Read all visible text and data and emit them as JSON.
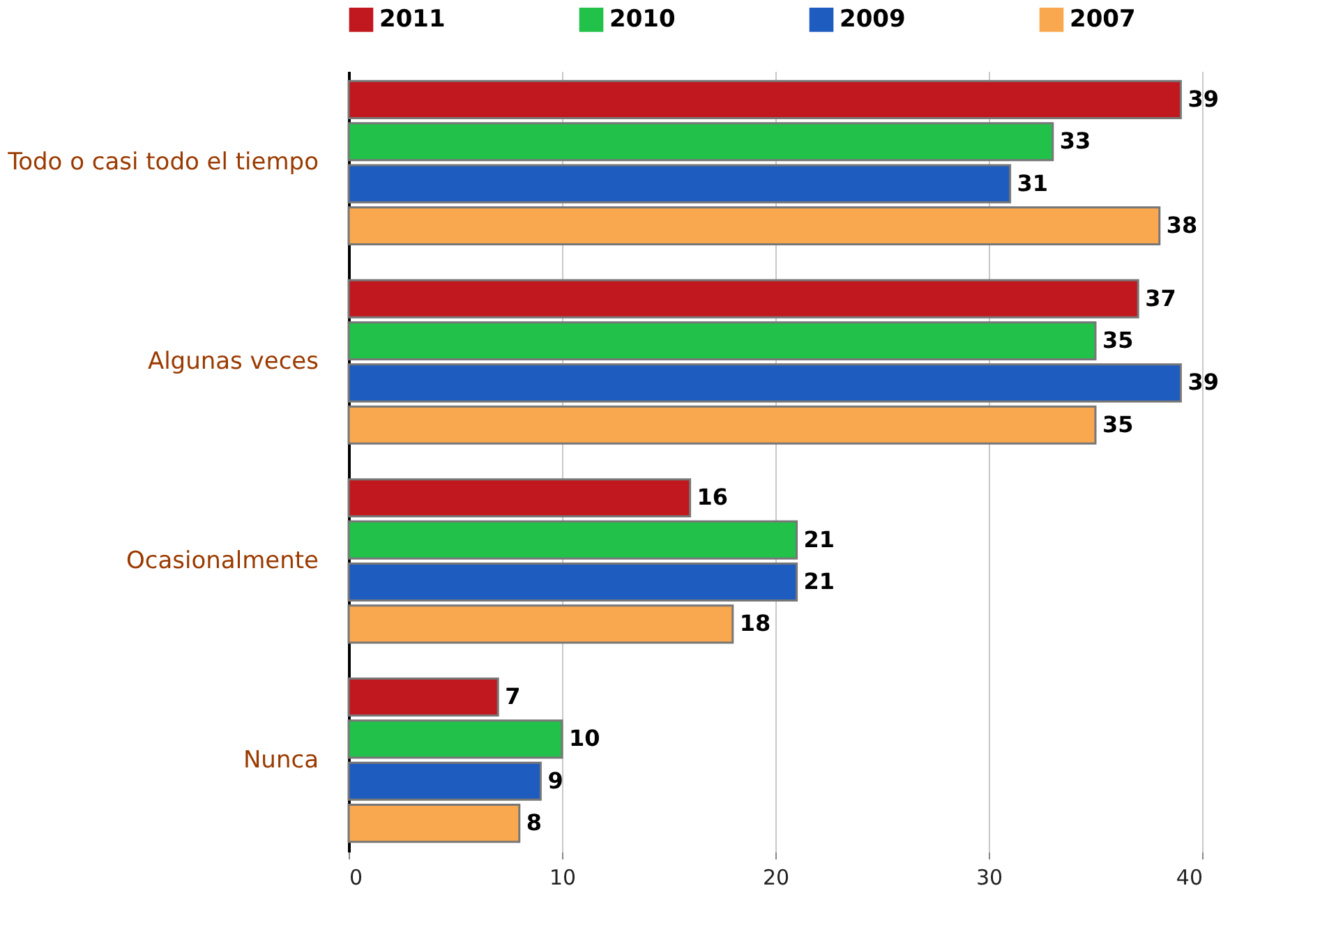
{
  "chart_data": {
    "type": "bar",
    "orientation": "horizontal",
    "categories": [
      "Todo o casi todo el tiempo",
      "Algunas veces",
      "Ocasionalmente",
      "Nunca"
    ],
    "series": [
      {
        "name": "2011",
        "color": "#c0181e",
        "values": [
          39,
          37,
          16,
          7
        ]
      },
      {
        "name": "2010",
        "color": "#22c24a",
        "values": [
          33,
          35,
          21,
          10
        ]
      },
      {
        "name": "2009",
        "color": "#1f5cbf",
        "values": [
          31,
          39,
          21,
          9
        ]
      },
      {
        "name": "2007",
        "color": "#f9a84f",
        "values": [
          38,
          35,
          18,
          8
        ]
      }
    ],
    "xlim": [
      0,
      40
    ],
    "xticks": [
      0,
      10,
      20,
      30,
      40
    ],
    "grid": "x",
    "legend": "top",
    "data_labels": true
  }
}
